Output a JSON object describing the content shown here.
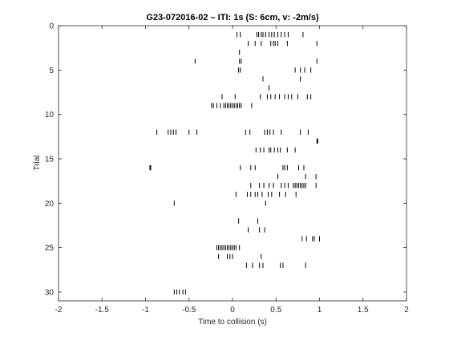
{
  "chart_data": {
    "type": "scatter",
    "marker": "vertical-tick",
    "title": "G23-072016-02 – ITI: 1s (S: 6cm, v: -2m/s)",
    "xlabel": "Time to collision (s)",
    "ylabel": "Trial",
    "xlim": [
      -2,
      2
    ],
    "ylim": [
      0,
      31
    ],
    "y_reversed": true,
    "grid": false,
    "xticks": [
      -2,
      -1.5,
      -1,
      -0.5,
      0,
      0.5,
      1,
      1.5,
      2
    ],
    "xtick_labels": [
      "-2",
      "-1.5",
      "-1",
      "-0.5",
      "0",
      "0.5",
      "1",
      "1.5",
      "2"
    ],
    "yticks": [
      0,
      5,
      10,
      15,
      20,
      25,
      30
    ],
    "ytick_labels": [
      "0",
      "5",
      "10",
      "15",
      "20",
      "25",
      "30"
    ],
    "marker_color": "#000000",
    "points": [
      {
        "trial": 1,
        "times": [
          0.05,
          0.09,
          0.28,
          0.3,
          0.33,
          0.35,
          0.38,
          0.42,
          0.45,
          0.48,
          0.52,
          0.56,
          0.6,
          0.64,
          0.81
        ]
      },
      {
        "trial": 2,
        "times": [
          0.18,
          0.26,
          0.33,
          0.44,
          0.47,
          0.49,
          0.52,
          0.63,
          0.97
        ]
      },
      {
        "trial": 3,
        "times": [
          0.08
        ]
      },
      {
        "trial": 4,
        "times": [
          -0.43,
          0.08,
          0.1,
          0.97
        ]
      },
      {
        "trial": 5,
        "times": [
          0.07,
          0.09,
          0.72,
          0.78,
          0.83,
          0.9
        ]
      },
      {
        "trial": 6,
        "times": [
          0.35,
          0.78
        ]
      },
      {
        "trial": 7,
        "times": [
          0.42
        ]
      },
      {
        "trial": 8,
        "times": [
          -0.12,
          0.03,
          0.32,
          0.4,
          0.44,
          0.49,
          0.54,
          0.6,
          0.64,
          0.68,
          0.75,
          0.86,
          0.9
        ]
      },
      {
        "trial": 9,
        "times": [
          -0.24,
          -0.22,
          -0.18,
          -0.14,
          -0.1,
          -0.08,
          -0.06,
          -0.04,
          -0.02,
          0.0,
          0.02,
          0.04,
          0.06,
          0.08,
          0.1,
          0.22
        ]
      },
      {
        "trial": 12,
        "times": [
          -0.87,
          -0.74,
          -0.71,
          -0.68,
          -0.65,
          -0.5,
          -0.41,
          0.15,
          0.2,
          0.37,
          0.4,
          0.43,
          0.47,
          0.56,
          0.78,
          0.87
        ]
      },
      {
        "trial": 13,
        "times": [
          0.97,
          0.98
        ]
      },
      {
        "trial": 14,
        "times": [
          0.27,
          0.32,
          0.36,
          0.42,
          0.44,
          0.48,
          0.52,
          0.55,
          0.63,
          0.72
        ]
      },
      {
        "trial": 16,
        "times": [
          -0.95,
          -0.94,
          0.09,
          0.21,
          0.26,
          0.58,
          0.6,
          0.63,
          0.76,
          0.82
        ]
      },
      {
        "trial": 17,
        "times": [
          0.52,
          0.84,
          0.96
        ]
      },
      {
        "trial": 18,
        "times": [
          0.21,
          0.31,
          0.36,
          0.42,
          0.47,
          0.56,
          0.6,
          0.64,
          0.7,
          0.72,
          0.74,
          0.76,
          0.78,
          0.8,
          0.82,
          0.84,
          0.96
        ]
      },
      {
        "trial": 19,
        "times": [
          0.04,
          0.17,
          0.21,
          0.26,
          0.29,
          0.34,
          0.41,
          0.45,
          0.54,
          0.61,
          0.73
        ]
      },
      {
        "trial": 20,
        "times": [
          -0.67,
          0.38
        ]
      },
      {
        "trial": 22,
        "times": [
          0.07,
          0.29
        ]
      },
      {
        "trial": 23,
        "times": [
          0.18,
          0.31,
          0.37
        ]
      },
      {
        "trial": 24,
        "times": [
          0.8,
          0.85,
          0.92,
          0.94,
          1.0
        ]
      },
      {
        "trial": 25,
        "times": [
          -0.18,
          -0.16,
          -0.14,
          -0.12,
          -0.1,
          -0.08,
          -0.06,
          -0.04,
          -0.02,
          0.0,
          0.02,
          0.04,
          0.08
        ]
      },
      {
        "trial": 26,
        "times": [
          -0.16,
          -0.06,
          -0.03,
          0.0,
          0.33
        ]
      },
      {
        "trial": 27,
        "times": [
          0.16,
          0.23,
          0.31,
          0.35,
          0.55,
          0.58,
          0.84
        ]
      },
      {
        "trial": 30,
        "times": [
          -0.67,
          -0.64,
          -0.61,
          -0.57,
          -0.54
        ]
      }
    ]
  }
}
